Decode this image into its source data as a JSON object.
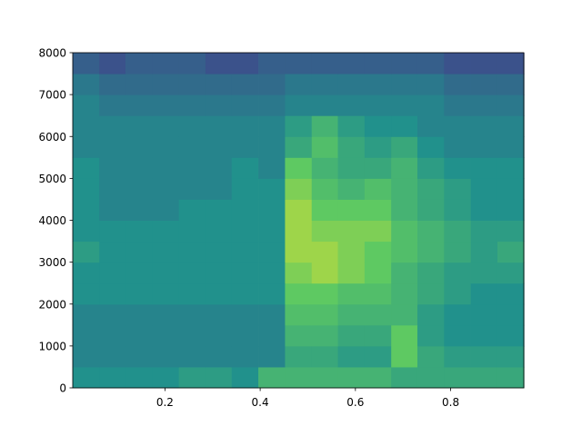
{
  "chart_data": {
    "type": "heatmap",
    "x": [
      0.034,
      0.09,
      0.145,
      0.201,
      0.257,
      0.313,
      0.368,
      0.424,
      0.48,
      0.536,
      0.591,
      0.647,
      0.703,
      0.758,
      0.814,
      0.87,
      0.926
    ],
    "y": [
      250,
      750,
      1250,
      1750,
      2250,
      2750,
      3250,
      3750,
      4250,
      4750,
      5250,
      5750,
      6250,
      6750,
      7250,
      7750
    ],
    "z": [
      [
        5,
        5,
        5,
        5,
        5.5,
        5.5,
        5,
        6.5,
        6.5,
        6.5,
        6.5,
        6.5,
        6,
        6,
        6,
        6,
        6
      ],
      [
        4.5,
        4.5,
        4.5,
        4.5,
        4.5,
        4.5,
        4.5,
        4.5,
        6,
        6,
        5.5,
        5.5,
        7.5,
        6,
        5.5,
        5.5,
        5.5
      ],
      [
        4.5,
        4.5,
        4.5,
        4.5,
        4.5,
        4.5,
        4.5,
        4.5,
        6.5,
        6.5,
        6,
        6,
        7.5,
        5.5,
        5,
        5,
        5
      ],
      [
        4.5,
        4.5,
        4.5,
        4.5,
        4.5,
        4.5,
        4.5,
        4.5,
        7,
        7,
        6.5,
        6.5,
        6.5,
        5.5,
        5,
        5,
        5
      ],
      [
        5,
        5,
        5,
        5,
        5,
        5,
        5,
        5,
        7.5,
        7.5,
        7,
        7,
        6.5,
        6,
        5.5,
        5,
        5
      ],
      [
        5,
        5,
        5,
        5,
        5,
        5,
        5,
        5,
        8,
        8.5,
        8,
        7.5,
        6.5,
        6,
        5.5,
        5.5,
        5.5
      ],
      [
        5.5,
        5,
        5,
        5,
        5,
        5,
        5,
        5,
        8.5,
        8.5,
        8,
        7.5,
        7,
        6.5,
        6,
        5.5,
        6
      ],
      [
        5,
        5,
        5,
        5,
        5,
        5,
        5,
        5,
        8.5,
        8,
        8,
        8,
        7,
        6.5,
        6,
        5.5,
        5.5
      ],
      [
        5,
        4.5,
        4.5,
        4.5,
        5,
        5,
        5,
        5,
        8.5,
        7.5,
        7.5,
        7.5,
        6.5,
        6,
        5.5,
        5,
        5
      ],
      [
        5,
        4.5,
        4.5,
        4.5,
        4.5,
        4.5,
        5,
        5,
        8,
        7,
        6.5,
        7,
        6.5,
        6,
        5.5,
        5,
        5
      ],
      [
        5,
        4.5,
        4.5,
        4.5,
        4.5,
        4.5,
        5,
        4.5,
        7.5,
        6.5,
        6,
        6,
        6.5,
        5.5,
        5,
        5,
        5
      ],
      [
        4.5,
        4.5,
        4.5,
        4.5,
        4.5,
        4.5,
        4.5,
        4.5,
        6,
        7,
        6,
        5.5,
        6,
        5,
        4.5,
        4.5,
        4.5
      ],
      [
        4.5,
        4.5,
        4.5,
        4.5,
        4.5,
        4.5,
        4.5,
        4.5,
        5.5,
        6.5,
        5.5,
        5,
        5,
        4.5,
        4.5,
        4.5,
        4.5
      ],
      [
        4.5,
        4,
        4,
        4,
        4,
        4,
        4,
        4,
        4.5,
        4.5,
        4.5,
        4.5,
        4.5,
        4.5,
        4,
        4,
        4
      ],
      [
        4,
        3.5,
        3.5,
        3.5,
        3.5,
        3.5,
        3.5,
        3.5,
        4,
        4,
        4,
        4,
        4,
        4,
        3.5,
        3.5,
        3.5
      ],
      [
        3,
        2.5,
        3,
        3,
        3,
        2.5,
        2.5,
        3,
        3,
        3,
        3,
        3,
        3,
        3,
        2.5,
        2.5,
        2.5
      ]
    ],
    "zlim": [
      0,
      10
    ],
    "colormap": [
      "#440154",
      "#3b528b",
      "#21918c",
      "#5ec962",
      "#fde725"
    ],
    "xlim": [
      0.0064,
      0.9536
    ],
    "ylim": [
      0,
      8000
    ],
    "xticks": [
      0.2,
      0.4,
      0.6,
      0.8
    ],
    "yticks": [
      0,
      1000,
      2000,
      3000,
      4000,
      5000,
      6000,
      7000,
      8000
    ]
  }
}
